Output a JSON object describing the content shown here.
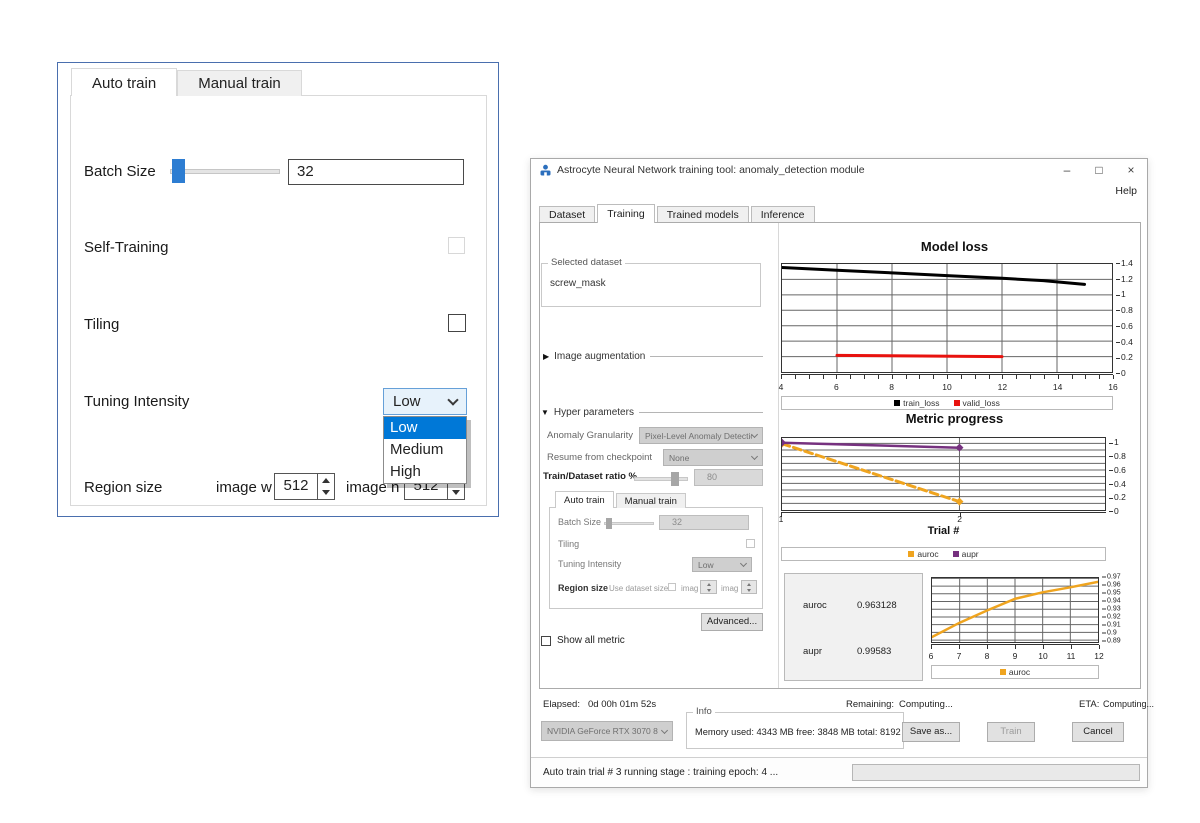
{
  "colors": {
    "accent_blue": "#2d7dd2",
    "selection_blue": "#0078d7",
    "train_loss_black": "#000000",
    "valid_loss_red": "#e8120e",
    "auroc_orange": "#efa41f",
    "aupr_purple": "#76317f"
  },
  "icons": {
    "expander_collapsed": "▶",
    "expander_expanded": "▼"
  },
  "zoom_panel": {
    "tabs": [
      {
        "label": "Auto train"
      },
      {
        "label": "Manual train"
      }
    ],
    "batch_size_label": "Batch Size",
    "batch_size_value": "32",
    "self_training_label": "Self-Training",
    "tiling_label": "Tiling",
    "tuning_intensity_label": "Tuning Intensity",
    "tuning_intensity_value": "Low",
    "dropdown_options": [
      "Low",
      "Medium",
      "High"
    ],
    "dropdown_selected": "Low",
    "region_size_label": "Region size",
    "image_w_label": "image w",
    "image_w_value": "512",
    "image_h_label": "image h",
    "image_h_value": "512"
  },
  "main_window": {
    "title": "Astrocyte Neural Network training tool: anomaly_detection module",
    "window_controls": {
      "minimize": "–",
      "maximize": "□",
      "close": "×"
    },
    "help_menu": "Help",
    "tabs": [
      {
        "label": "Dataset"
      },
      {
        "label": "Training"
      },
      {
        "label": "Trained models"
      },
      {
        "label": "Inference"
      }
    ],
    "sidebar": {
      "selected_dataset_label": "Selected dataset",
      "selected_dataset_value": "screw_mask",
      "image_augmentation_label": "Image augmentation",
      "hyper_parameters_label": "Hyper parameters",
      "anomaly_granularity_label": "Anomaly Granularity",
      "anomaly_granularity_value": "Pixel-Level Anomaly Detection",
      "resume_label": "Resume from checkpoint",
      "resume_value": "None",
      "ratio_label": "Train/Dataset ratio %",
      "ratio_value": "80",
      "inner_tabs": [
        {
          "label": "Auto train"
        },
        {
          "label": "Manual train"
        }
      ],
      "batch_size_label": "Batch Size",
      "batch_size_value": "32",
      "tiling_label": "Tiling",
      "tuning_intensity_label": "Tuning Intensity",
      "tuning_intensity_value": "Low",
      "region_size_label": "Region size",
      "use_dataset_size_label": "Use dataset size",
      "imag_w_label": "imag",
      "imag_h_label": "imag",
      "advanced_button": "Advanced...",
      "show_all_metric_label": "Show all metric"
    },
    "metrics": {
      "auroc_label": "auroc",
      "auroc_value": "0.963128",
      "aupr_label": "aupr",
      "aupr_value": "0.99583"
    },
    "footer": {
      "elapsed_label": "Elapsed:",
      "elapsed_value": "0d 00h 01m 52s",
      "remaining_label": "Remaining:",
      "remaining_value": "Computing...",
      "eta_label": "ETA:",
      "eta_value": "Computing...",
      "gpu_selector": "NVIDIA GeForce RTX 3070 8",
      "info_label": "Info",
      "memory_info": "Memory used: 4343 MB  free: 3848 MB  total: 8192 MB",
      "save_as_button": "Save as...",
      "train_button": "Train",
      "cancel_button": "Cancel"
    },
    "status_text": "Auto train trial # 3 running stage : training epoch: 4 ..."
  },
  "chart_data": [
    {
      "type": "line",
      "title": "Model loss",
      "xlabel": "",
      "x_range": [
        4,
        16
      ],
      "y_range": [
        0,
        1.4
      ],
      "x_grid": [
        6,
        8,
        10,
        12,
        14
      ],
      "x_minor_step": 0.5,
      "y_grid": [
        0.2,
        0.4,
        0.6,
        0.8,
        1.0,
        1.2
      ],
      "x_ticks": [
        {
          "v": 4,
          "t": "4"
        },
        {
          "v": 6,
          "t": "6"
        },
        {
          "v": 8,
          "t": "8"
        },
        {
          "v": 10,
          "t": "10"
        },
        {
          "v": 12,
          "t": "12"
        },
        {
          "v": 14,
          "t": "14"
        },
        {
          "v": 16,
          "t": "16"
        }
      ],
      "y_labels": [
        {
          "v": 1.4,
          "t": "1.4"
        },
        {
          "v": 1.2,
          "t": "1.2"
        },
        {
          "v": 1.0,
          "t": "1"
        },
        {
          "v": 0.8,
          "t": "0.8"
        },
        {
          "v": 0.6,
          "t": "0.6"
        },
        {
          "v": 0.4,
          "t": "0.4"
        },
        {
          "v": 0.2,
          "t": "0.2"
        },
        {
          "v": 0,
          "t": "0"
        }
      ],
      "series": [
        {
          "name": "train_loss",
          "color": "#000000",
          "width": 3,
          "points": [
            [
              4,
              1.355
            ],
            [
              6,
              1.32
            ],
            [
              8,
              1.285
            ],
            [
              10,
              1.25
            ],
            [
              12,
              1.215
            ],
            [
              13.5,
              1.185
            ],
            [
              15,
              1.135
            ]
          ]
        },
        {
          "name": "valid_loss",
          "color": "#e8120e",
          "width": 3,
          "points": [
            [
              6,
              0.215
            ],
            [
              12,
              0.2
            ]
          ]
        }
      ],
      "legend": [
        {
          "name": "train_loss",
          "color": "#000000"
        },
        {
          "name": "valid_loss",
          "color": "#e8120e"
        }
      ]
    },
    {
      "type": "line",
      "title": "Metric progress",
      "xlabel": "Trial #",
      "x_range": [
        1,
        2.82
      ],
      "y_range": [
        0,
        1.08
      ],
      "x_grid": [
        2
      ],
      "y_grid": [
        0.1,
        0.2,
        0.3,
        0.4,
        0.5,
        0.6,
        0.7,
        0.8,
        0.9,
        1.0
      ],
      "x_ticks": [
        {
          "v": 1,
          "t": "1"
        },
        {
          "v": 2,
          "t": "2"
        }
      ],
      "y_labels": [
        {
          "v": 1.0,
          "t": "1"
        },
        {
          "v": 0.8,
          "t": "0.8"
        },
        {
          "v": 0.6,
          "t": "0.6"
        },
        {
          "v": 0.4,
          "t": "0.4"
        },
        {
          "v": 0.2,
          "t": "0.2"
        },
        {
          "v": 0,
          "t": "0"
        }
      ],
      "series": [
        {
          "name": "auroc",
          "color": "#efa41f",
          "width": 3,
          "dash": "8 4",
          "marker": true,
          "points": [
            [
              1,
              0.995
            ],
            [
              2,
              0.125
            ]
          ]
        },
        {
          "name": "aupr",
          "color": "#76317f",
          "width": 2.5,
          "marker": true,
          "points": [
            [
              1,
              1.01
            ],
            [
              2,
              0.935
            ]
          ]
        }
      ],
      "legend": [
        {
          "name": "auroc",
          "color": "#efa41f"
        },
        {
          "name": "aupr",
          "color": "#76317f"
        }
      ]
    },
    {
      "type": "line",
      "title": "",
      "xlabel": "",
      "x_range": [
        6,
        12
      ],
      "y_range": [
        0.8875,
        0.9705
      ],
      "x_grid": [
        7,
        8,
        9,
        10,
        11
      ],
      "x_minor_step": 1,
      "y_grid": [
        0.89,
        0.9,
        0.91,
        0.92,
        0.93,
        0.94,
        0.95,
        0.96,
        0.97
      ],
      "x_ticks": [
        {
          "v": 6,
          "t": "6"
        },
        {
          "v": 7,
          "t": "7"
        },
        {
          "v": 8,
          "t": "8"
        },
        {
          "v": 9,
          "t": "9"
        },
        {
          "v": 10,
          "t": "10"
        },
        {
          "v": 11,
          "t": "11"
        },
        {
          "v": 12,
          "t": "12"
        }
      ],
      "y_labels": [
        {
          "v": 0.97,
          "t": "0.97"
        },
        {
          "v": 0.96,
          "t": "0.96"
        },
        {
          "v": 0.95,
          "t": "0.95"
        },
        {
          "v": 0.94,
          "t": "0.94"
        },
        {
          "v": 0.93,
          "t": "0.93"
        },
        {
          "v": 0.92,
          "t": "0.92"
        },
        {
          "v": 0.91,
          "t": "0.91"
        },
        {
          "v": 0.9,
          "t": "0.9"
        },
        {
          "v": 0.89,
          "t": "0.89"
        }
      ],
      "series": [
        {
          "name": "auroc",
          "color": "#efa41f",
          "width": 2.5,
          "points": [
            [
              6,
              0.894
            ],
            [
              7,
              0.9125
            ],
            [
              8,
              0.9285
            ],
            [
              9,
              0.9435
            ],
            [
              10,
              0.952
            ],
            [
              11,
              0.9585
            ],
            [
              12,
              0.9655
            ]
          ]
        }
      ],
      "legend": [
        {
          "name": "auroc",
          "color": "#efa41f"
        }
      ]
    }
  ]
}
